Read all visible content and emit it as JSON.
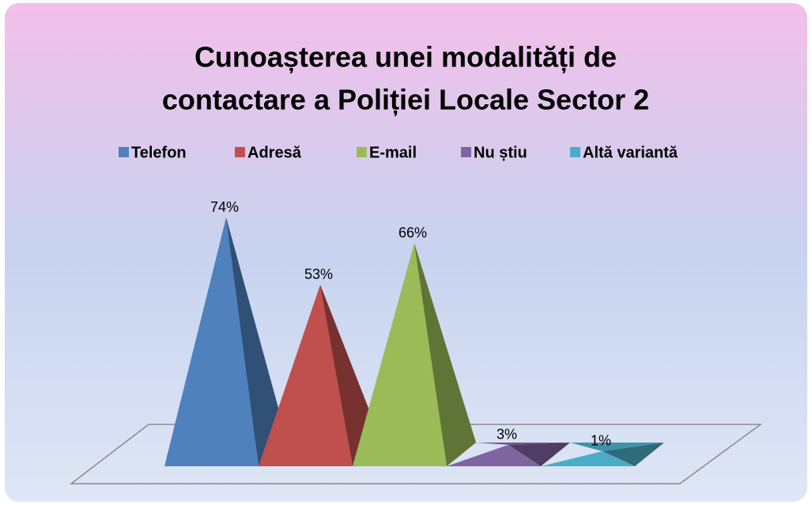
{
  "chart_data": {
    "type": "pyramid",
    "title": "Cunoașterea unei modalități de contactare a Poliției Locale Sector 2",
    "title_lines": [
      "Cunoașterea unei modalități de",
      "contactare a Poliției Locale Sector 2"
    ],
    "legend": "top",
    "series": [
      {
        "name": "Telefon",
        "color": "#4f81bd",
        "values": [
          74
        ],
        "value_labels": [
          "74%"
        ]
      },
      {
        "name": "Adresă",
        "color": "#c0504d",
        "values": [
          53
        ],
        "value_labels": [
          "53%"
        ]
      },
      {
        "name": "E-mail",
        "color": "#9bbb59",
        "values": [
          66
        ],
        "value_labels": [
          "66%"
        ]
      },
      {
        "name": "Nu știu",
        "color": "#8064a2",
        "values": [
          3
        ],
        "value_labels": [
          "3%"
        ]
      },
      {
        "name": "Altă variantă",
        "color": "#4bacc6",
        "values": [
          1
        ],
        "value_labels": [
          "1%"
        ]
      }
    ]
  }
}
